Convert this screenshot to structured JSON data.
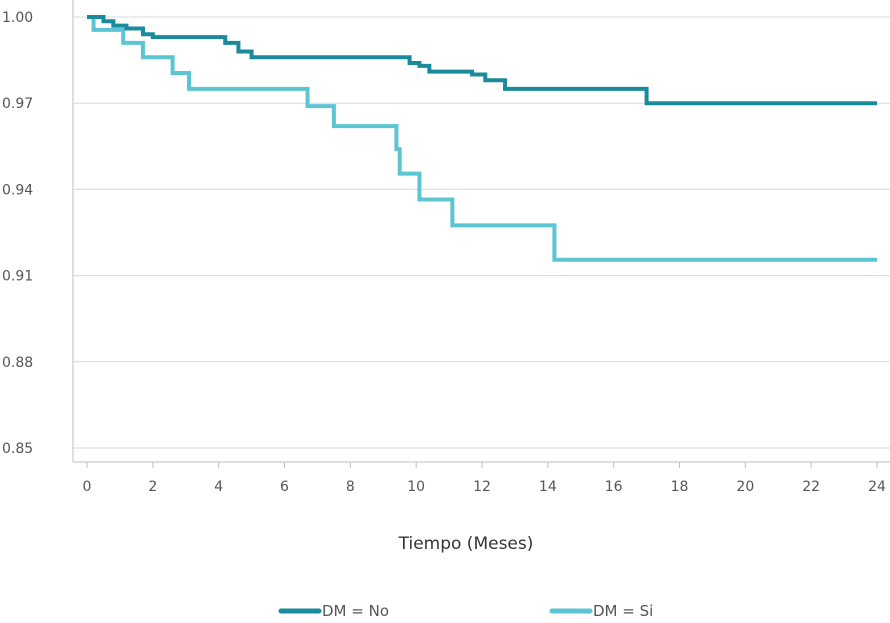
{
  "colors": {
    "dm_no": "#1a8b9d",
    "dm_si": "#5bc5d3",
    "grid": "#d9d9d9",
    "axis": "#bfbfbf"
  },
  "chart_data": {
    "type": "line",
    "step": true,
    "title": "",
    "xlabel": "Tiempo (Meses)",
    "ylabel": "",
    "xlim": [
      0,
      24
    ],
    "ylim": [
      0.85,
      1.0
    ],
    "x_ticks": [
      "0",
      "2",
      "4",
      "6",
      "8",
      "10",
      "12",
      "14",
      "16",
      "18",
      "20",
      "22",
      "24"
    ],
    "y_ticks": [
      "0.85",
      "0.88",
      "0.91",
      "0.94",
      "0.97",
      "1.00"
    ],
    "grid": "horizontal",
    "legend_position": "bottom",
    "series": [
      {
        "name": "DM = No",
        "x": [
          0,
          0.5,
          0.8,
          1.2,
          1.7,
          2.0,
          4.2,
          4.6,
          5.0,
          9.8,
          10.1,
          10.4,
          11.7,
          12.1,
          12.7,
          17.0,
          24
        ],
        "y": [
          1.0,
          0.9985,
          0.997,
          0.996,
          0.994,
          0.993,
          0.991,
          0.988,
          0.986,
          0.984,
          0.983,
          0.981,
          0.98,
          0.978,
          0.975,
          0.97,
          0.97
        ]
      },
      {
        "name": "DM = Si",
        "x": [
          0,
          0.2,
          1.1,
          1.7,
          2.6,
          3.1,
          6.7,
          7.5,
          9.4,
          9.5,
          10.1,
          11.1,
          14.2,
          24
        ],
        "y": [
          1.0,
          0.9955,
          0.991,
          0.986,
          0.9805,
          0.975,
          0.969,
          0.962,
          0.954,
          0.9455,
          0.9365,
          0.9275,
          0.9155,
          0.9155
        ]
      }
    ]
  }
}
